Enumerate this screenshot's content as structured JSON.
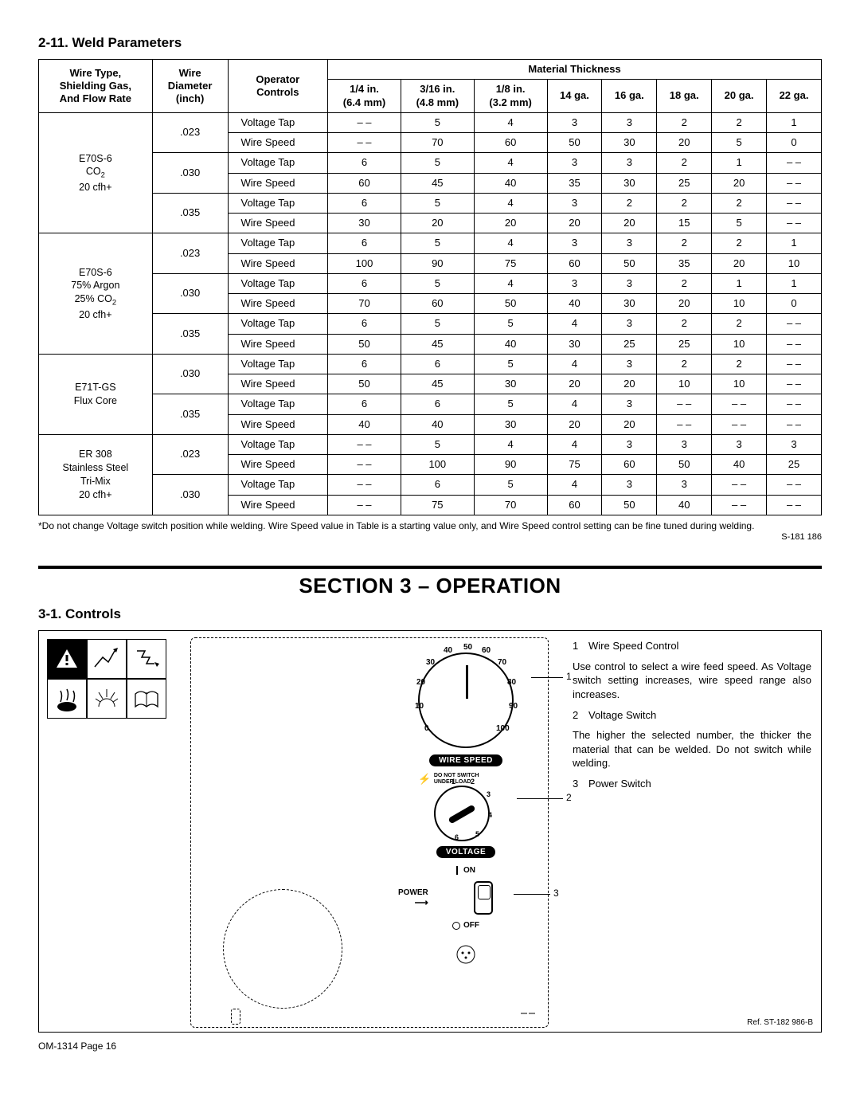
{
  "headings": {
    "weld_params": "2-11.  Weld Parameters",
    "section3": "SECTION 3 – OPERATION",
    "controls": "3-1.  Controls"
  },
  "table": {
    "head_wiretype": "Wire Type,\nShielding Gas,\nAnd Flow Rate",
    "head_diameter": "Wire\nDiameter\n(inch)",
    "head_operator": "Operator\nControls",
    "head_material": "Material Thickness",
    "cols": [
      "1/4 in.\n(6.4 mm)",
      "3/16 in.\n(4.8 mm)",
      "1/8 in.\n(3.2 mm)",
      "14 ga.",
      "16 ga.",
      "18 ga.",
      "20 ga.",
      "22 ga."
    ],
    "op_labels": {
      "vt": "Voltage Tap",
      "ws": "Wire Speed"
    },
    "groups": [
      {
        "wiretype_html": "E70S-6<br>CO<sub>2</sub><br>20 cfh+",
        "diameters": [
          {
            "dia": ".023",
            "vt": [
              "– –",
              "5",
              "4",
              "3",
              "3",
              "2",
              "2",
              "1"
            ],
            "ws": [
              "– –",
              "70",
              "60",
              "50",
              "30",
              "20",
              "5",
              "0"
            ]
          },
          {
            "dia": ".030",
            "vt": [
              "6",
              "5",
              "4",
              "3",
              "3",
              "2",
              "1",
              "– –"
            ],
            "ws": [
              "60",
              "45",
              "40",
              "35",
              "30",
              "25",
              "20",
              "– –"
            ]
          },
          {
            "dia": ".035",
            "vt": [
              "6",
              "5",
              "4",
              "3",
              "2",
              "2",
              "2",
              "– –"
            ],
            "ws": [
              "30",
              "20",
              "20",
              "20",
              "20",
              "15",
              "5",
              "– –"
            ]
          }
        ]
      },
      {
        "wiretype_html": "E70S-6<br>75% Argon<br>25% CO<sub>2</sub><br>20 cfh+",
        "diameters": [
          {
            "dia": ".023",
            "vt": [
              "6",
              "5",
              "4",
              "3",
              "3",
              "2",
              "2",
              "1"
            ],
            "ws": [
              "100",
              "90",
              "75",
              "60",
              "50",
              "35",
              "20",
              "10"
            ]
          },
          {
            "dia": ".030",
            "vt": [
              "6",
              "5",
              "4",
              "3",
              "3",
              "2",
              "1",
              "1"
            ],
            "ws": [
              "70",
              "60",
              "50",
              "40",
              "30",
              "20",
              "10",
              "0"
            ]
          },
          {
            "dia": ".035",
            "vt": [
              "6",
              "5",
              "5",
              "4",
              "3",
              "2",
              "2",
              "– –"
            ],
            "ws": [
              "50",
              "45",
              "40",
              "30",
              "25",
              "25",
              "10",
              "– –"
            ]
          }
        ]
      },
      {
        "wiretype_html": "E71T-GS<br>Flux Core",
        "diameters": [
          {
            "dia": ".030",
            "vt": [
              "6",
              "6",
              "5",
              "4",
              "3",
              "2",
              "2",
              "– –"
            ],
            "ws": [
              "50",
              "45",
              "30",
              "20",
              "20",
              "10",
              "10",
              "– –"
            ]
          },
          {
            "dia": ".035",
            "vt": [
              "6",
              "6",
              "5",
              "4",
              "3",
              "– –",
              "– –",
              "– –"
            ],
            "ws": [
              "40",
              "40",
              "30",
              "20",
              "20",
              "– –",
              "– –",
              "– –"
            ]
          }
        ]
      },
      {
        "wiretype_html": "ER 308<br>Stainless Steel<br>Tri-Mix<br>20 cfh+",
        "diameters": [
          {
            "dia": ".023",
            "vt": [
              "– –",
              "5",
              "4",
              "4",
              "3",
              "3",
              "3",
              "3"
            ],
            "ws": [
              "– –",
              "100",
              "90",
              "75",
              "60",
              "50",
              "40",
              "25"
            ]
          },
          {
            "dia": ".030",
            "vt": [
              "– –",
              "6",
              "5",
              "4",
              "3",
              "3",
              "– –",
              "– –"
            ],
            "ws": [
              "– –",
              "75",
              "70",
              "60",
              "50",
              "40",
              "– –",
              "– –"
            ]
          }
        ]
      }
    ],
    "footnote": "*Do not change Voltage switch position while welding. Wire Speed value in Table is a starting value only, and Wire Speed control setting can be fine tuned during welding.",
    "footnote_ref": "S-181 186"
  },
  "dial": {
    "labels": [
      "0",
      "10",
      "20",
      "30",
      "40",
      "50",
      "60",
      "70",
      "80",
      "90",
      "100"
    ],
    "pill_wire": "WIRE SPEED",
    "pill_voltage": "VOLTAGE",
    "dns": "DO NOT SWITCH\nUNDER LOAD",
    "sel_nums": [
      "1",
      "2",
      "3",
      "4",
      "5",
      "6"
    ],
    "on": "ON",
    "off": "OFF",
    "power": "POWER"
  },
  "callouts": {
    "c1": "1",
    "c2": "2",
    "c3": "3"
  },
  "desc": {
    "i1_num": "1",
    "i1_title": "Wire Speed Control",
    "i1_text": "Use control to select a wire feed speed. As Voltage switch setting increases, wire speed range also increases.",
    "i2_num": "2",
    "i2_title": "Voltage Switch",
    "i2_text": "The higher the selected number, the thicker the material that can be welded. Do not switch while welding.",
    "i3_num": "3",
    "i3_title": "Power Switch"
  },
  "corner_ref": "Ref. ST-182 986-B",
  "page_footer": "OM-1314 Page 16"
}
